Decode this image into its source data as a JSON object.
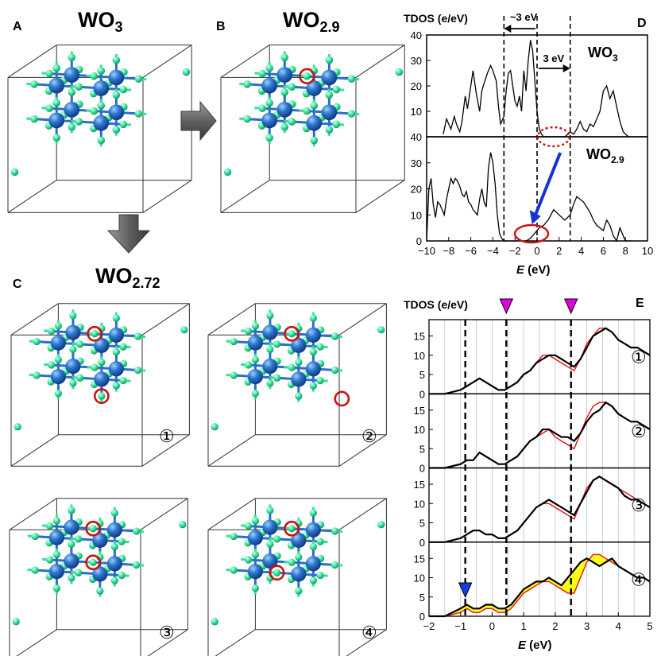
{
  "panels": {
    "A": {
      "letter": "A",
      "formula_main": "WO",
      "formula_sub": "3"
    },
    "B": {
      "letter": "B",
      "formula_main": "WO",
      "formula_sub": "2.9"
    },
    "C": {
      "letter": "C",
      "formula_main": "WO",
      "formula_sub": "2.72",
      "configs": [
        "①",
        "②",
        "③",
        "④"
      ]
    },
    "D": {
      "letter": "D"
    },
    "E": {
      "letter": "E"
    }
  },
  "colors": {
    "tungsten": "#2f78d0",
    "oxygen": "#3ee8a0",
    "bond_w": "#2a6fc9",
    "bond_o": "#38e09a",
    "vacancy": "#cc1111",
    "arrow_gray": "#6a6a6a",
    "blue_arrow": "#1533d6",
    "magenta": "#e000e0",
    "fill_yellow": "#ffff1a"
  },
  "chart_data": [
    {
      "type": "line",
      "panel": "D",
      "ylabel": "TDOS (e/eV)",
      "xlabel_italic": "E",
      "xlabel_unit": " (eV)",
      "xlim": [
        -10,
        10
      ],
      "xticks": [
        "−10",
        "−8",
        "−6",
        "−4",
        "−2",
        "0",
        "2",
        "4",
        "6",
        "8",
        "10"
      ],
      "annotations": {
        "gap_left": "~3 eV",
        "gap_right": "3 eV"
      },
      "series": [
        {
          "name": "WO3",
          "label_main": "WO",
          "label_sub": "3",
          "ylim": [
            0,
            40
          ],
          "yticks": [
            "10",
            "20",
            "30",
            "40"
          ],
          "x": [
            -8.5,
            -8.2,
            -7.8,
            -7.5,
            -7.3,
            -7.0,
            -6.8,
            -6.5,
            -6.3,
            -6.0,
            -5.8,
            -5.5,
            -5.2,
            -5.0,
            -4.8,
            -4.5,
            -4.2,
            -4.0,
            -3.7,
            -3.5,
            -3.3,
            -3.0,
            -2.8,
            -2.6,
            -2.4,
            -2.2,
            -2.0,
            -1.8,
            -1.6,
            -1.4,
            -1.2,
            -1.0,
            -0.8,
            -0.6,
            -0.4,
            -0.2,
            0.0,
            0.2,
            0.4,
            0.6,
            0.8,
            1.0,
            1.5,
            2.0,
            2.5,
            2.8,
            3.0,
            3.3,
            3.6,
            3.9,
            4.2,
            4.5,
            4.8,
            5.1,
            5.4,
            5.7,
            6.0,
            6.3,
            6.6,
            6.9,
            7.2,
            7.5,
            7.8,
            8.0,
            8.3
          ],
          "y": [
            1,
            7,
            3,
            8,
            5,
            2,
            6,
            16,
            11,
            20,
            26,
            17,
            10,
            18,
            21,
            25,
            28,
            26,
            22,
            12,
            5,
            8,
            18,
            25,
            26,
            20,
            14,
            12,
            16,
            10,
            26,
            18,
            30,
            38,
            34,
            22,
            10,
            3,
            1,
            0,
            0,
            0,
            0,
            0,
            0,
            1,
            2,
            1,
            3,
            6,
            3,
            2,
            5,
            4,
            7,
            10,
            18,
            20,
            15,
            18,
            12,
            6,
            2,
            1,
            0
          ]
        },
        {
          "name": "WO2.9",
          "label_main": "WO",
          "label_sub": "2.9",
          "ylim": [
            0,
            40
          ],
          "yticks": [
            "0",
            "10",
            "20",
            "30",
            "40"
          ],
          "x": [
            -10.0,
            -9.8,
            -9.6,
            -9.4,
            -9.2,
            -9.0,
            -8.8,
            -8.6,
            -8.4,
            -8.2,
            -8.0,
            -7.8,
            -7.6,
            -7.4,
            -7.2,
            -7.0,
            -6.8,
            -6.6,
            -6.4,
            -6.2,
            -6.0,
            -5.8,
            -5.6,
            -5.4,
            -5.2,
            -5.0,
            -4.8,
            -4.6,
            -4.4,
            -4.2,
            -4.0,
            -3.8,
            -3.6,
            -3.4,
            -3.2,
            -3.0,
            -2.8,
            -2.0,
            -1.0,
            -0.6,
            -0.4,
            -0.2,
            0.0,
            0.2,
            0.6,
            1.0,
            1.5,
            2.0,
            2.5,
            3.0,
            3.3,
            3.6,
            3.9,
            4.2,
            4.5,
            4.8,
            5.1,
            5.4,
            5.7,
            6.0,
            6.3,
            6.6,
            6.9,
            7.2,
            7.5,
            7.8,
            8.0,
            8.5
          ],
          "y": [
            0,
            20,
            24,
            14,
            9,
            15,
            14,
            12,
            10,
            16,
            20,
            24,
            22,
            24,
            23,
            21,
            18,
            17,
            19,
            15,
            14,
            12,
            11,
            10,
            16,
            20,
            15,
            13,
            28,
            34,
            30,
            22,
            10,
            3,
            1,
            0,
            0,
            0,
            0,
            1,
            2,
            3,
            4,
            5,
            6,
            8,
            12,
            10,
            8,
            10,
            14,
            17,
            16,
            15,
            13,
            11,
            8,
            6,
            5,
            4,
            8,
            6,
            2,
            0,
            5,
            2,
            0,
            0
          ]
        }
      ]
    },
    {
      "type": "line",
      "panel": "E",
      "ylabel": "TDOS (e/eV)",
      "xlabel_italic": "E",
      "xlabel_unit": " (eV)",
      "xlim": [
        -2,
        5
      ],
      "xticks": [
        "−2",
        "−1",
        "0",
        "1",
        "2",
        "3",
        "4",
        "5"
      ],
      "yticks": [
        "0",
        "5",
        "10",
        "15"
      ],
      "dashed_lines_x": [
        -0.85,
        0.45,
        2.5
      ],
      "markers": {
        "magenta_down_x": [
          0.45,
          2.5
        ],
        "blue_down_x": -0.85
      },
      "subpanels": [
        {
          "label": "①",
          "ylim": [
            0,
            18
          ],
          "x": [
            -2.0,
            -1.5,
            -1.0,
            -0.8,
            -0.6,
            -0.4,
            -0.2,
            0.0,
            0.2,
            0.4,
            0.6,
            0.8,
            1.0,
            1.2,
            1.4,
            1.6,
            1.8,
            2.0,
            2.2,
            2.4,
            2.6,
            2.8,
            3.0,
            3.2,
            3.4,
            3.6,
            3.8,
            4.0,
            4.2,
            4.4,
            4.6,
            4.8,
            5.0
          ],
          "black": [
            0,
            0,
            1,
            2,
            3,
            4,
            3,
            2,
            1,
            1,
            2,
            3,
            5,
            6,
            8,
            9,
            10,
            10,
            9,
            8,
            7,
            9,
            12,
            15,
            16,
            17,
            16,
            14,
            13,
            12,
            12,
            11,
            10
          ],
          "red": [
            0,
            0,
            1,
            2,
            3,
            4,
            3,
            2,
            1,
            1,
            2,
            3,
            5,
            6,
            8,
            10,
            10,
            9,
            8,
            7,
            6,
            9,
            13,
            15,
            17,
            17,
            16,
            14,
            13,
            12,
            12,
            11,
            10
          ]
        },
        {
          "label": "②",
          "ylim": [
            0,
            18
          ],
          "x": [
            -2.0,
            -1.5,
            -1.0,
            -0.8,
            -0.6,
            -0.4,
            -0.2,
            0.0,
            0.2,
            0.4,
            0.6,
            0.8,
            1.0,
            1.2,
            1.4,
            1.6,
            1.8,
            2.0,
            2.2,
            2.4,
            2.6,
            2.8,
            3.0,
            3.2,
            3.4,
            3.6,
            3.8,
            4.0,
            4.2,
            4.4,
            4.6,
            4.8,
            5.0
          ],
          "black": [
            0,
            0,
            1,
            2,
            2,
            4,
            3,
            2,
            1,
            1,
            2,
            3,
            5,
            7,
            8,
            10,
            10,
            9,
            8,
            8,
            7,
            9,
            12,
            14,
            15,
            17,
            16,
            14,
            13,
            12,
            12,
            11,
            10
          ],
          "red": [
            0,
            0,
            1,
            2,
            2,
            4,
            3,
            2,
            1,
            1,
            2,
            3,
            5,
            7,
            8,
            9,
            10,
            8,
            7,
            6,
            5,
            9,
            13,
            16,
            17,
            17,
            16,
            14,
            13,
            12,
            12,
            11,
            10
          ]
        },
        {
          "label": "③",
          "ylim": [
            0,
            18
          ],
          "x": [
            -2.0,
            -1.5,
            -1.0,
            -0.8,
            -0.6,
            -0.4,
            -0.2,
            0.0,
            0.2,
            0.4,
            0.6,
            0.8,
            1.0,
            1.2,
            1.4,
            1.6,
            1.8,
            2.0,
            2.2,
            2.4,
            2.6,
            2.8,
            3.0,
            3.2,
            3.4,
            3.6,
            3.8,
            4.0,
            4.2,
            4.4,
            4.6,
            4.8,
            5.0
          ],
          "black": [
            0,
            0,
            1,
            2,
            3,
            3,
            2,
            2,
            1,
            1,
            2,
            3,
            5,
            7,
            9,
            10,
            11,
            10,
            9,
            8,
            7,
            10,
            13,
            16,
            17,
            16,
            15,
            14,
            12,
            11,
            11,
            10,
            9
          ],
          "red": [
            0,
            0,
            1,
            2,
            3,
            3,
            2,
            2,
            1,
            1,
            2,
            3,
            5,
            7,
            9,
            10,
            10,
            9,
            8,
            7,
            6,
            10,
            14,
            16,
            17,
            16,
            15,
            14,
            13,
            12,
            11,
            10,
            9
          ]
        },
        {
          "label": "④",
          "ylim": [
            0,
            18
          ],
          "x": [
            -2.0,
            -1.5,
            -1.0,
            -0.8,
            -0.6,
            -0.4,
            -0.2,
            0.0,
            0.2,
            0.4,
            0.6,
            0.8,
            1.0,
            1.2,
            1.4,
            1.6,
            1.8,
            2.0,
            2.2,
            2.4,
            2.6,
            2.8,
            3.0,
            3.2,
            3.4,
            3.6,
            3.8,
            4.0,
            4.2,
            4.4,
            4.6,
            4.8,
            5.0
          ],
          "black": [
            0,
            0,
            2,
            3,
            2,
            2,
            3,
            3,
            2,
            2,
            3,
            5,
            7,
            8,
            9,
            9,
            10,
            9,
            8,
            10,
            12,
            14,
            15,
            14,
            13,
            14,
            15,
            13,
            12,
            11,
            10,
            10,
            9
          ],
          "red": [
            0,
            0,
            1,
            2,
            1,
            1,
            2,
            2,
            1,
            1,
            2,
            4,
            6,
            7,
            8,
            9,
            9,
            8,
            7,
            6,
            6,
            10,
            14,
            16,
            16,
            15,
            14,
            13,
            12,
            11,
            10,
            10,
            9
          ]
        }
      ]
    }
  ]
}
